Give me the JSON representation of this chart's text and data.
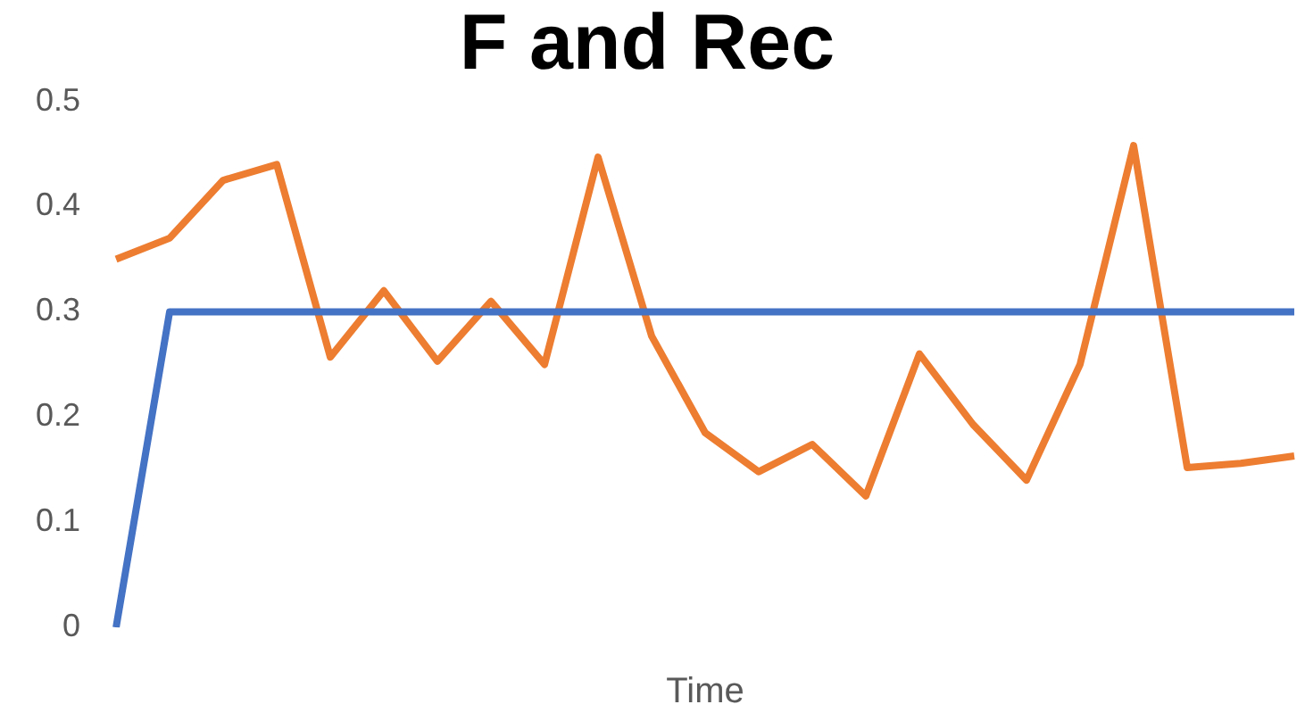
{
  "chart_data": {
    "type": "line",
    "title": "F and Rec",
    "xlabel": "Time",
    "categories": [
      null,
      null,
      null,
      null,
      null,
      null,
      null,
      null,
      null,
      null,
      null,
      null,
      null,
      null,
      null,
      null,
      null,
      null,
      null,
      null,
      null,
      null,
      null
    ],
    "series": [
      {
        "color": "#4472c4",
        "values": [
          0,
          0.3,
          0.3,
          0.3,
          0.3,
          0.3,
          0.3,
          0.3,
          0.3,
          0.3,
          0.3,
          0.3,
          0.3,
          0.3,
          0.3,
          0.3,
          0.3,
          0.3,
          0.3,
          0.3,
          0.3,
          0.3,
          0.3
        ]
      },
      {
        "color": "#ed7d31",
        "values": [
          0.35,
          0.37,
          0.425,
          0.44,
          0.257,
          0.32,
          0.253,
          0.31,
          0.25,
          0.447,
          0.277,
          0.185,
          0.148,
          0.174,
          0.125,
          0.26,
          0.193,
          0.14,
          0.25,
          0.458,
          0.152,
          0.156,
          0.163
        ]
      }
    ],
    "ylim": [
      0,
      0.5
    ],
    "yticks": [
      0,
      0.1,
      0.2,
      0.3,
      0.4,
      0.5
    ],
    "grid": false,
    "legend": false,
    "marker": "none",
    "line_style": "solid"
  }
}
